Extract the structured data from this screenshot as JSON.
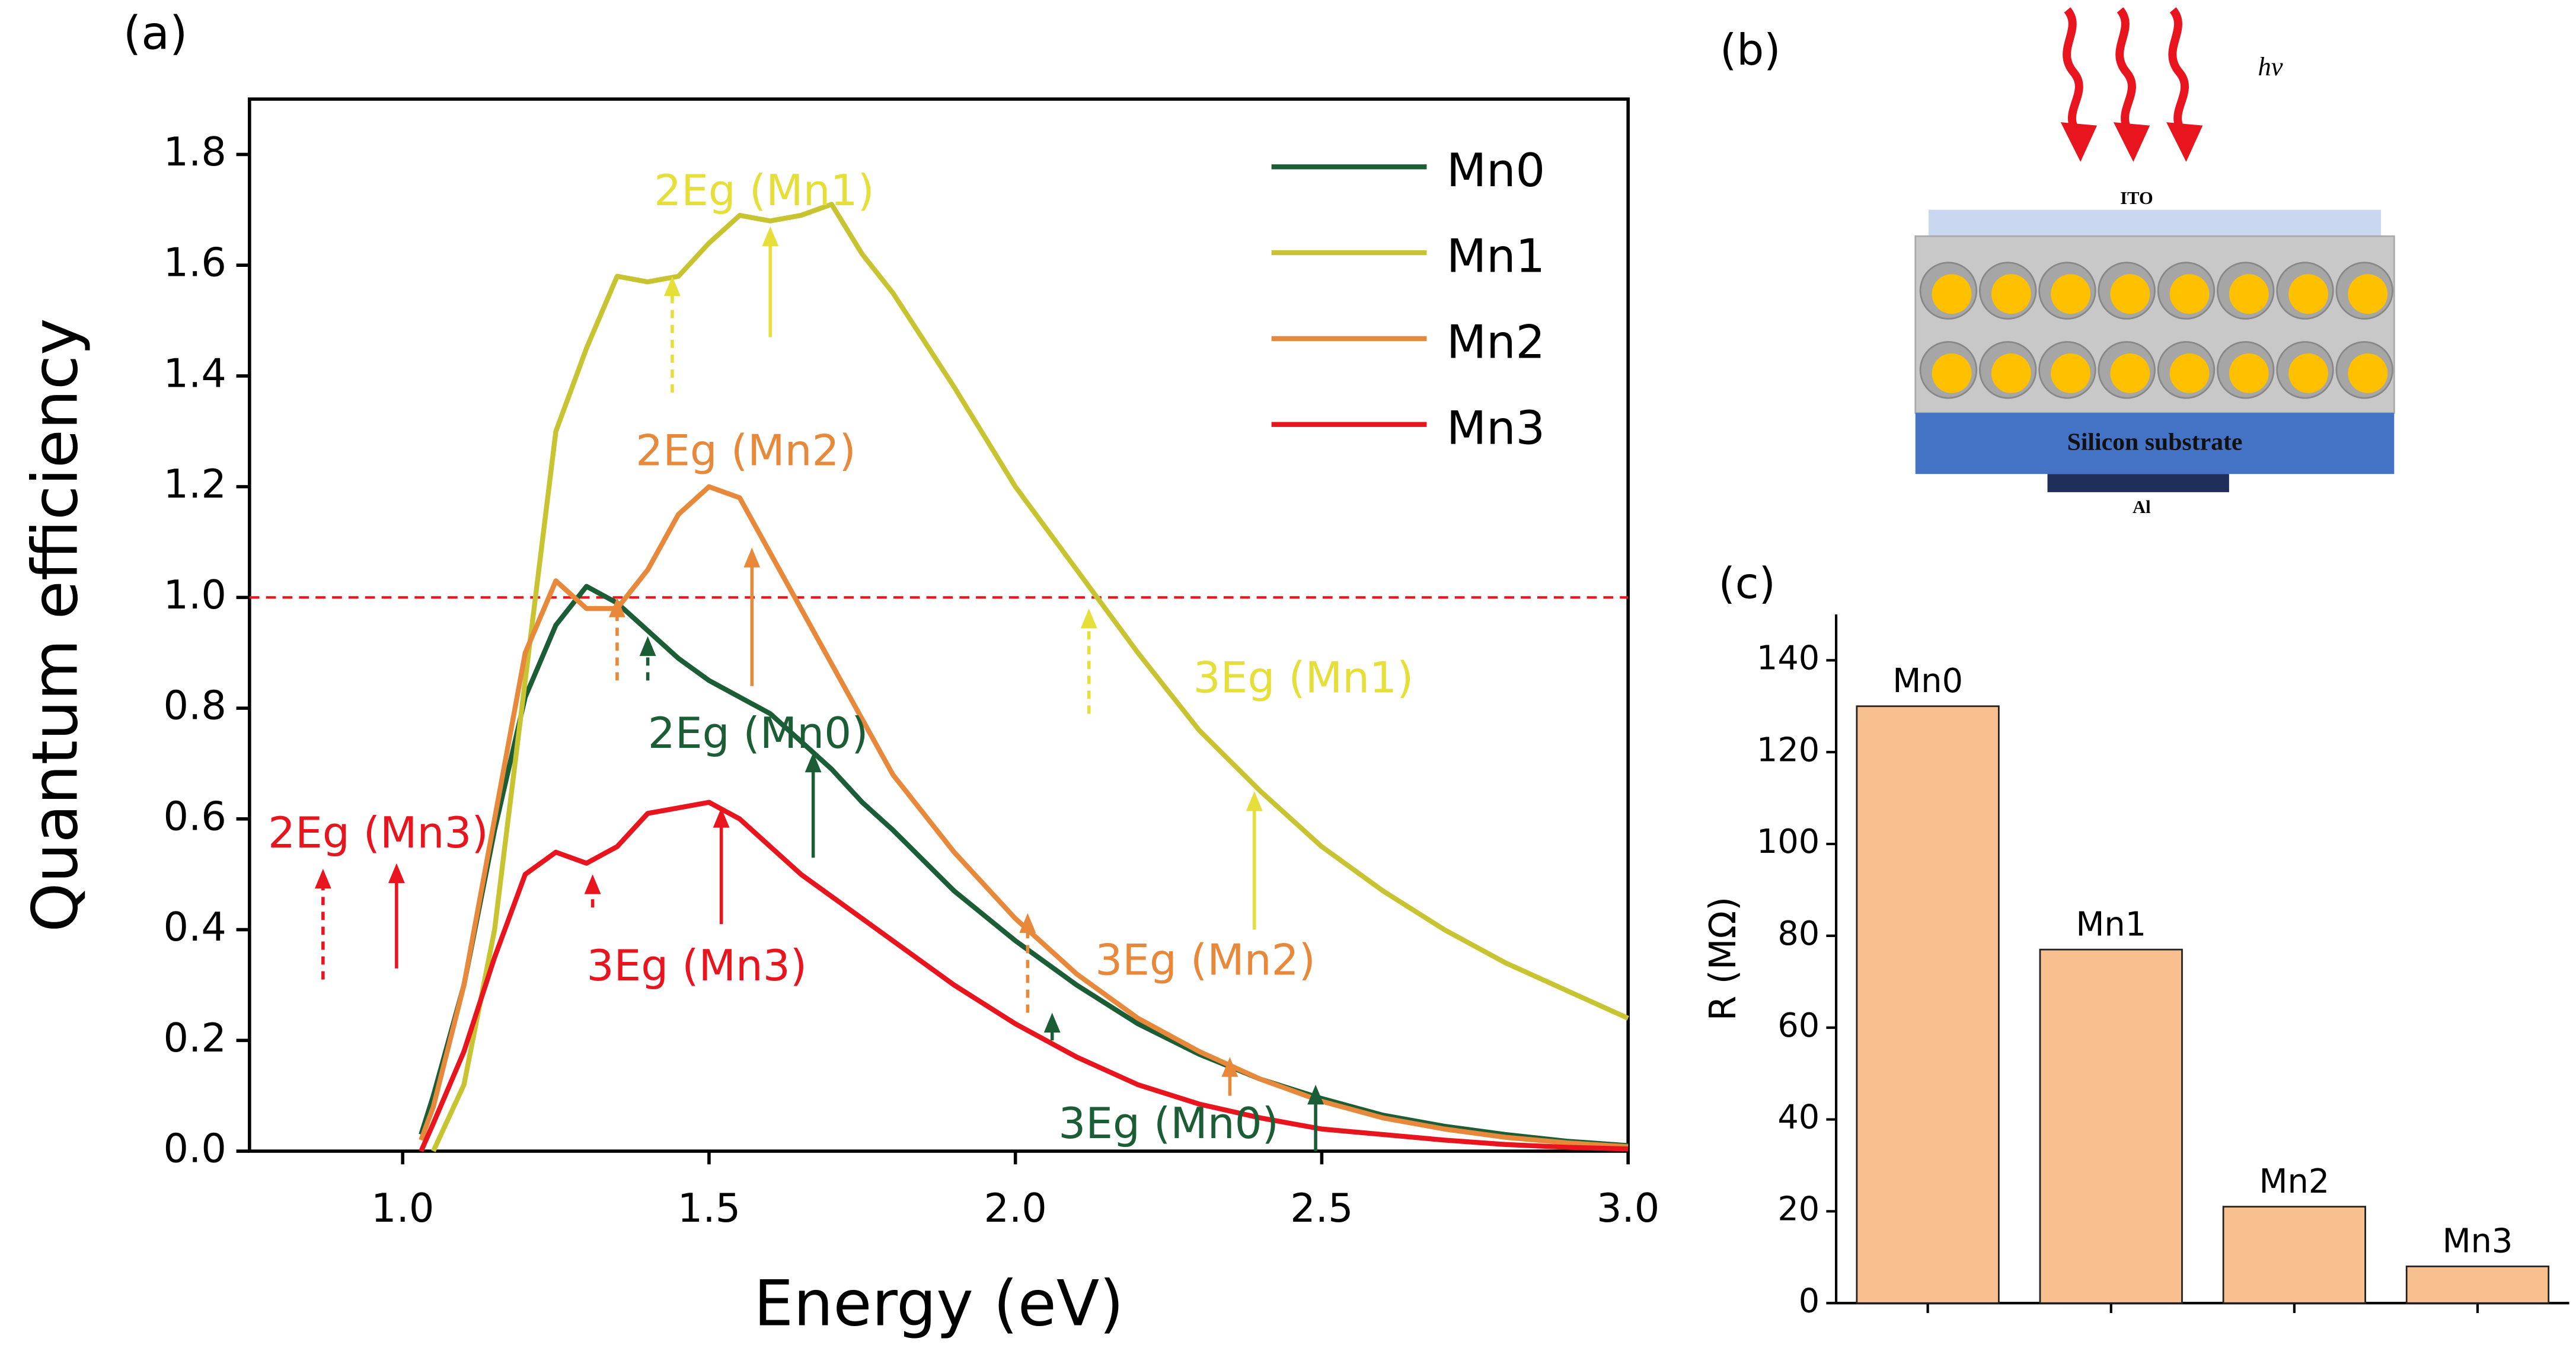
{
  "chart_data": [
    {
      "type": "line",
      "panel_label": "(a)",
      "x_label": "Energy (eV)",
      "y_label": "Quantum efficiency",
      "x": [
        1.03,
        1.05,
        1.1,
        1.15,
        1.2,
        1.25,
        1.3,
        1.35,
        1.4,
        1.45,
        1.5,
        1.55,
        1.6,
        1.65,
        1.7,
        1.75,
        1.8,
        1.9,
        2.0,
        2.1,
        2.2,
        2.3,
        2.4,
        2.5,
        2.6,
        2.7,
        2.8,
        2.9,
        3.0
      ],
      "series": [
        {
          "name": "Mn0",
          "color": "#1b5e35",
          "values": [
            0.03,
            0.1,
            0.3,
            0.58,
            0.82,
            0.95,
            1.02,
            0.99,
            0.94,
            0.89,
            0.85,
            0.82,
            0.79,
            0.74,
            0.69,
            0.63,
            0.58,
            0.47,
            0.38,
            0.3,
            0.23,
            0.175,
            0.13,
            0.095,
            0.065,
            0.045,
            0.03,
            0.018,
            0.01
          ]
        },
        {
          "name": "Mn1",
          "color": "#c8c431",
          "values": [
            null,
            0.0,
            0.12,
            0.4,
            0.85,
            1.3,
            1.45,
            1.58,
            1.57,
            1.58,
            1.64,
            1.69,
            1.68,
            1.69,
            1.71,
            1.62,
            1.55,
            1.38,
            1.2,
            1.05,
            0.9,
            0.76,
            0.65,
            0.55,
            0.47,
            0.4,
            0.34,
            0.29,
            0.24
          ]
        },
        {
          "name": "Mn2",
          "color": "#e8883a",
          "values": [
            0.02,
            0.08,
            0.3,
            0.6,
            0.9,
            1.03,
            0.98,
            0.98,
            1.05,
            1.15,
            1.2,
            1.18,
            1.08,
            0.98,
            0.88,
            0.78,
            0.68,
            0.54,
            0.42,
            0.32,
            0.24,
            0.18,
            0.13,
            0.09,
            0.06,
            0.04,
            0.025,
            0.015,
            0.008
          ]
        },
        {
          "name": "Mn3",
          "color": "#e8141e",
          "values": [
            0.0,
            0.05,
            0.18,
            0.35,
            0.5,
            0.54,
            0.52,
            0.55,
            0.61,
            0.62,
            0.63,
            0.6,
            0.55,
            0.5,
            0.46,
            0.42,
            0.38,
            0.3,
            0.23,
            0.17,
            0.12,
            0.085,
            0.06,
            0.04,
            0.03,
            0.02,
            0.012,
            0.007,
            0.004
          ]
        }
      ],
      "xlim": [
        0.75,
        3.0
      ],
      "xticks": [
        {
          "value": 1,
          "label": "1.0"
        },
        1.5,
        {
          "value": 2,
          "label": "2.0"
        },
        2.5,
        {
          "value": 3,
          "label": "3.0"
        }
      ],
      "ylim": [
        0,
        1.9
      ],
      "yticks": [
        {
          "value": 0,
          "label": "0.0"
        },
        0.2,
        0.4,
        0.6,
        0.8,
        {
          "value": 1,
          "label": "1.0"
        },
        1.2,
        1.4,
        1.6,
        1.8
      ],
      "reference_line": {
        "y": 1.0,
        "color": "#e8141e"
      },
      "legend": "upper right",
      "annotations": [
        {
          "text": "2Eg (Mn1)",
          "x": 1.59,
          "y": 1.73,
          "color": "#e6df3a"
        },
        {
          "text": "2Eg (Mn2)",
          "x": 1.56,
          "y": 1.26,
          "color": "#e8883a"
        },
        {
          "text": "2Eg (Mn0)",
          "x": 1.58,
          "y": 0.75,
          "color": "#1b5e35"
        },
        {
          "text": "3Eg (Mn1)",
          "x": 2.47,
          "y": 0.85,
          "color": "#e6df3a"
        },
        {
          "text": "2Eg (Mn3)",
          "x": 0.96,
          "y": 0.57,
          "color": "#e8141e"
        },
        {
          "text": "3Eg (Mn3)",
          "x": 1.48,
          "y": 0.33,
          "color": "#e8141e"
        },
        {
          "text": "3Eg (Mn2)",
          "x": 2.31,
          "y": 0.34,
          "color": "#e8883a"
        },
        {
          "text": "3Eg (Mn0)",
          "x": 2.25,
          "y": 0.045,
          "color": "#1b5e35"
        }
      ],
      "arrows": [
        {
          "x": 1.44,
          "y1": 1.37,
          "y2": 1.58,
          "color": "#e6df3a",
          "dashed": true
        },
        {
          "x": 1.6,
          "y1": 1.47,
          "y2": 1.67,
          "color": "#e6df3a",
          "dashed": false
        },
        {
          "x": 2.12,
          "y1": 0.79,
          "y2": 0.98,
          "color": "#e6df3a",
          "dashed": true
        },
        {
          "x": 2.39,
          "y1": 0.4,
          "y2": 0.65,
          "color": "#e6df3a",
          "dashed": false
        },
        {
          "x": 1.35,
          "y1": 0.85,
          "y2": 1.0,
          "color": "#e8883a",
          "dashed": true
        },
        {
          "x": 1.57,
          "y1": 0.84,
          "y2": 1.09,
          "color": "#e8883a",
          "dashed": false
        },
        {
          "x": 2.02,
          "y1": 0.25,
          "y2": 0.43,
          "color": "#e8883a",
          "dashed": true
        },
        {
          "x": 2.35,
          "y1": 0.1,
          "y2": 0.17,
          "color": "#e8883a",
          "dashed": false
        },
        {
          "x": 1.4,
          "y1": 0.85,
          "y2": 0.93,
          "color": "#1b5e35",
          "dashed": true
        },
        {
          "x": 1.67,
          "y1": 0.53,
          "y2": 0.72,
          "color": "#1b5e35",
          "dashed": false
        },
        {
          "x": 2.06,
          "y1": 0.2,
          "y2": 0.25,
          "color": "#1b5e35",
          "dashed": true
        },
        {
          "x": 2.49,
          "y1": 0.0,
          "y2": 0.12,
          "color": "#1b5e35",
          "dashed": false
        },
        {
          "x": 0.87,
          "y1": 0.31,
          "y2": 0.51,
          "color": "#e8141e",
          "dashed": true
        },
        {
          "x": 0.99,
          "y1": 0.33,
          "y2": 0.52,
          "color": "#e8141e",
          "dashed": false
        },
        {
          "x": 1.31,
          "y1": 0.44,
          "y2": 0.5,
          "color": "#e8141e",
          "dashed": true
        },
        {
          "x": 1.52,
          "y1": 0.41,
          "y2": 0.62,
          "color": "#e8141e",
          "dashed": false
        }
      ]
    },
    {
      "type": "bar",
      "panel_label": "(c)",
      "y_label": "R (MΩ)",
      "categories": [
        "Mn0",
        "Mn1",
        "Mn2",
        "Mn3"
      ],
      "values": [
        130,
        77,
        21,
        8
      ],
      "color": "#f9c08f",
      "ylim": [
        0,
        150
      ],
      "yticks": [
        0,
        20,
        40,
        60,
        80,
        100,
        120,
        140
      ]
    }
  ],
  "diagram": {
    "panel_label": "(b)",
    "light_label": "hν",
    "top_layer": "ITO",
    "substrate_layer": "Silicon substrate",
    "electrode_layer": "Al"
  }
}
